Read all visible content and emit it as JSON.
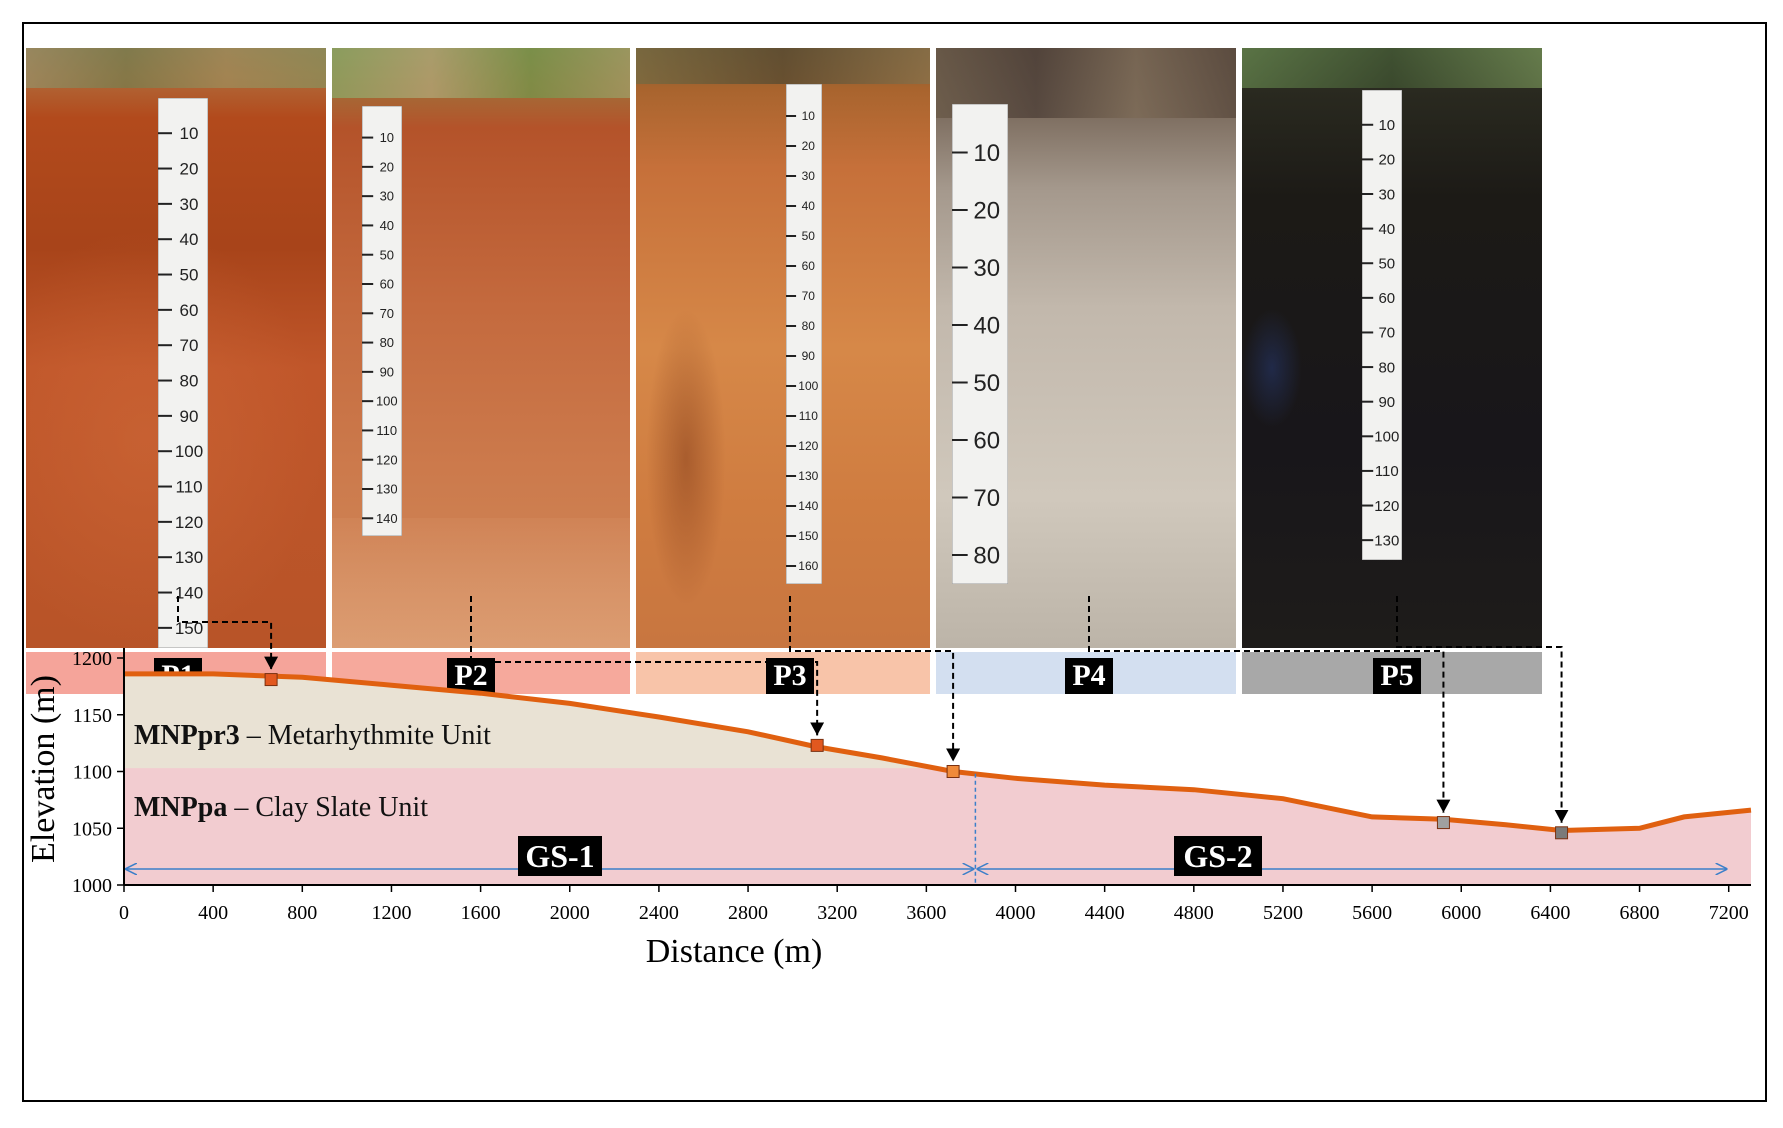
{
  "profiles": [
    {
      "id": "P1",
      "band_color": "#f5a49a"
    },
    {
      "id": "P2",
      "band_color": "#f6a99c"
    },
    {
      "id": "P3",
      "band_color": "#f8c4a9"
    },
    {
      "id": "P4",
      "band_color": "#d3dff0"
    },
    {
      "id": "P5",
      "band_color": "#a8a8a8"
    }
  ],
  "rulers": {
    "p1": [
      "10",
      "20",
      "30",
      "40",
      "50",
      "60",
      "70",
      "80",
      "90",
      "100",
      "110",
      "120",
      "130",
      "140",
      "150"
    ],
    "p2": [
      "10",
      "20",
      "30",
      "40",
      "50",
      "60",
      "70",
      "80",
      "90",
      "100",
      "110",
      "120",
      "130",
      "140"
    ],
    "p3": [
      "10",
      "20",
      "30",
      "40",
      "50",
      "60",
      "70",
      "80",
      "90",
      "100",
      "110",
      "120",
      "130",
      "140",
      "150",
      "160"
    ],
    "p4": [
      "10",
      "20",
      "30",
      "40",
      "50",
      "60",
      "70",
      "80"
    ],
    "p5": [
      "10",
      "20",
      "30",
      "40",
      "50",
      "60",
      "70",
      "80",
      "90",
      "100",
      "110",
      "120",
      "130"
    ]
  },
  "units": {
    "upper": {
      "code": "MNPpr3",
      "name": " – Metarhythmite Unit"
    },
    "lower": {
      "code": "MNPpa",
      "name": " – Clay Slate Unit"
    }
  },
  "geosurfaces": [
    "GS-1",
    "GS-2"
  ],
  "chart_data": {
    "type": "area",
    "xlabel": "Distance (m)",
    "ylabel": "Elevation (m)",
    "xlim": [
      0,
      7300
    ],
    "ylim": [
      1000,
      1200
    ],
    "x_ticks": [
      "0",
      "400",
      "800",
      "1200",
      "1600",
      "2000",
      "2400",
      "2800",
      "3200",
      "3600",
      "4000",
      "4400",
      "4800",
      "5200",
      "5600",
      "6000",
      "6400",
      "6800",
      "7200"
    ],
    "y_ticks": [
      "1000",
      "1050",
      "1100",
      "1150",
      "1200"
    ],
    "terrain": {
      "x": [
        0,
        400,
        800,
        1200,
        1600,
        2000,
        2400,
        2800,
        3100,
        3400,
        3720,
        4000,
        4400,
        4800,
        5200,
        5600,
        5920,
        6200,
        6450,
        6800,
        7000,
        7300
      ],
      "y": [
        1186,
        1186,
        1183,
        1176,
        1169,
        1160,
        1148,
        1135,
        1122,
        1112,
        1100,
        1094,
        1088,
        1084,
        1076,
        1060,
        1058,
        1053,
        1048,
        1050,
        1060,
        1066
      ]
    },
    "unit_contact_elevation": 1103,
    "unit_contact_end_x": 3720,
    "gs_boundary_x": 3820,
    "profile_points": [
      {
        "name": "P1",
        "x": 660,
        "y": 1181,
        "color": "#e2581f"
      },
      {
        "name": "P2",
        "x": 3110,
        "y": 1123,
        "color": "#e2581f"
      },
      {
        "name": "P3",
        "x": 3720,
        "y": 1100,
        "color": "#f08a3a"
      },
      {
        "name": "P4",
        "x": 5920,
        "y": 1055,
        "color": "#a0a0a0"
      },
      {
        "name": "P5",
        "x": 6450,
        "y": 1046,
        "color": "#7a7a7a"
      }
    ],
    "colors": {
      "terrain_line": "#e06010",
      "upper_unit": "#e9e2d4",
      "lower_unit": "#f2ccd0",
      "gs_arrow": "#3b7fc9"
    }
  }
}
